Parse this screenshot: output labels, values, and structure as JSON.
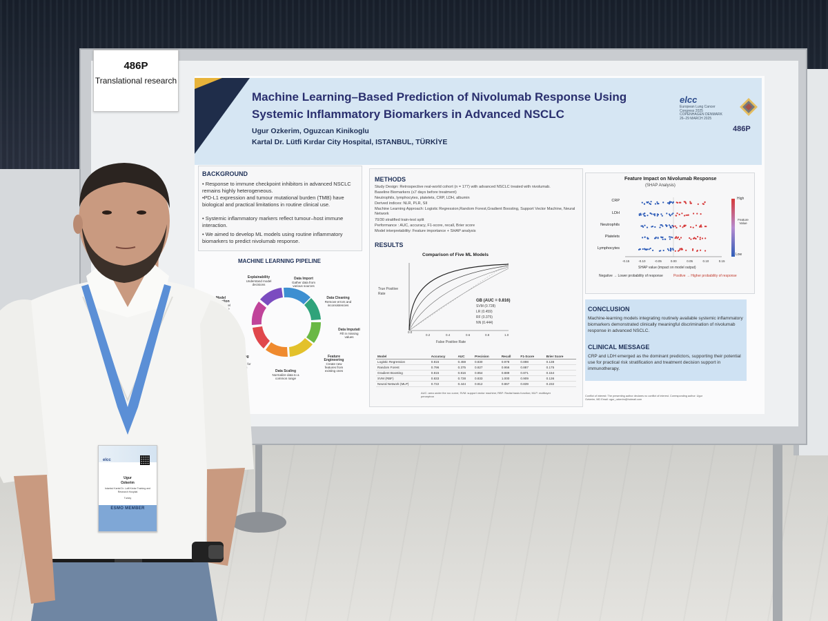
{
  "board": {
    "number": "486P",
    "category": "Translational research"
  },
  "poster": {
    "title": "Machine Learning–Based Prediction of Nivolumab Response Using Systemic Inflammatory Biomarkers in Advanced NSCLC",
    "authors": "Ugur Ozkerim, Oguzcan Kinikoglu",
    "institution": "Kartal Dr. Lütfi Kırdar City Hospital, ISTANBUL, TÜRKİYE",
    "poster_id": "486P",
    "conference": {
      "name": "elcc",
      "subtitle": "European Lung Cancer Congress 2025",
      "dates": "COPENHAGEN DENMARK 26–29 MARCH 2025"
    },
    "background": {
      "title": "BACKGROUND",
      "bullets": [
        "• Response to immune checkpoint inhibitors in advanced NSCLC remains highly heterogeneous.",
        "•PD-L1 expression and tumour mutational burden (TMB) have biological and practical limitations in routine clinical use.",
        "• Systemic inflammatory markers reflect tumour–host immune interaction.",
        "• We aimed to develop ML models using routine inflammatory biomarkers to predict nivolumab response."
      ]
    },
    "pipeline": {
      "title": "MACHINE LEARNING PIPELINE",
      "steps": [
        {
          "name": "Data Import",
          "desc": "Gather data from various sources"
        },
        {
          "name": "Data Cleaning",
          "desc": "Remove errors and inconsistencies"
        },
        {
          "name": "Data Imputati",
          "desc": "Fill in missing values"
        },
        {
          "name": "Feature Engineering",
          "desc": "Create new features from existing ones"
        },
        {
          "name": "Data Scaling",
          "desc": "Normalize data to a common range"
        },
        {
          "name": "Training Split",
          "desc": "Split data for training"
        },
        {
          "name": "Model Evaluation",
          "desc": "Assess model performance"
        },
        {
          "name": "Explainability",
          "desc": "Understand model decisions"
        }
      ]
    },
    "methods": {
      "title": "METHODS",
      "lines": [
        "Study Design: Retrospective real-world cohort (n = 177) with advanced NSCLC treated with nivolumab.",
        "Baseline Biomarkers (≤7 days before treatment)",
        "Neutrophils, lymphocytes, platelets, CRP, LDH, albumin",
        "Derived indices: NLR, PLR, SII",
        "Machine Learning Approach: Logistic Regression,Random Forest,Gradient Boosting, Support Vector Machine, Neural Network",
        "70/30 stratified train-test split",
        "Performance : AUC, accuracy, F1-score, recall, Brier score",
        "Model interpretability: Feature importance + SHAP analysis"
      ]
    },
    "results": {
      "title": "RESULTS",
      "roc_title": "Comparison of Five ML Models",
      "roc_ylabel": "True Positive Rate",
      "roc_xlabel": "False Positive Rate",
      "roc_legend": [
        "GB (AUC = 0.816)",
        "SVM (0.728)",
        "LR (0.459)",
        "RF (0.375)",
        "NN (0.444)"
      ],
      "table_headers": [
        "Model",
        "Accuracy",
        "AUC",
        "Precision",
        "Recall",
        "F1-Score",
        "Brier Score"
      ],
      "table_rows": [
        [
          "Logistic Regression",
          "0.815",
          "0.459",
          "0.830",
          "0.978",
          "0.898",
          "0.138"
        ],
        [
          "Random Forest",
          "0.796",
          "0.375",
          "0.827",
          "0.956",
          "0.887",
          "0.175"
        ],
        [
          "Gradient Boosting",
          "0.815",
          "0.816",
          "0.854",
          "0.889",
          "0.871",
          "0.154"
        ],
        [
          "SVM (RBF)",
          "0.833",
          "0.728",
          "0.833",
          "1.000",
          "0.909",
          "0.136"
        ],
        [
          "Neural Network (MLP)",
          "0.722",
          "0.444",
          "0.812",
          "0.867",
          "0.839",
          "0.232"
        ]
      ],
      "table_note": "AUC: area under the roc curve; SVM: support vector machine; RBF: Radial basis function; MLP: multilayer perceptron"
    },
    "shap": {
      "title": "Feature Impact on Nivolumab Response",
      "subtitle": "(SHAP Analysis)",
      "features": [
        "CRP",
        "LDH",
        "Neutrophils",
        "Platelets",
        "Lymphocytes"
      ],
      "ticks": [
        "-0.15",
        "-0.10",
        "-0.05",
        "0.00",
        "0.05",
        "0.10",
        "0.15"
      ],
      "xlabel": "SHAP value (impact on model output)",
      "high_label": "High",
      "low_label": "Low",
      "feature_value_label": "Feature Value",
      "negative_note": "Negative → Lower probability of response",
      "positive_note": "Positive → Higher probability of response"
    },
    "conclusion": {
      "title": "CONCLUSION",
      "text": "Machine-learning models integrating routinely available systemic inflammatory biomarkers demonstrated clinically meaningful discrimination of nivolumab response in advanced NSCLC."
    },
    "clinical_message": {
      "title": "CLINICAL MESSAGE",
      "text": "CRP and LDH emerged as the dominant predictors, supporting their potential use for practical risk stratification and treatment decision support in immunotherapy."
    },
    "coi": "Conflict of interest: The presenting author declares no conflict of interest. Corresponding author: Ugur Ozkerim, MD Email: ugur_ozkerim@hotmail.com"
  },
  "badge": {
    "header": "elcc",
    "first_name": "Ugur",
    "last_name": "Ozkerim",
    "affiliation": "Istanbul Kartal Dr. Lutfi Kirdar Training and Research Hospital",
    "country": "Turkey",
    "member": "ESMO MEMBER"
  },
  "colors": {
    "poster_header": "#d6e6f3",
    "title_navy": "#2a2f6e",
    "conclusion_panel": "#cfe2f3",
    "shap_high": "#d63a3a",
    "shap_low": "#2f5db8"
  }
}
